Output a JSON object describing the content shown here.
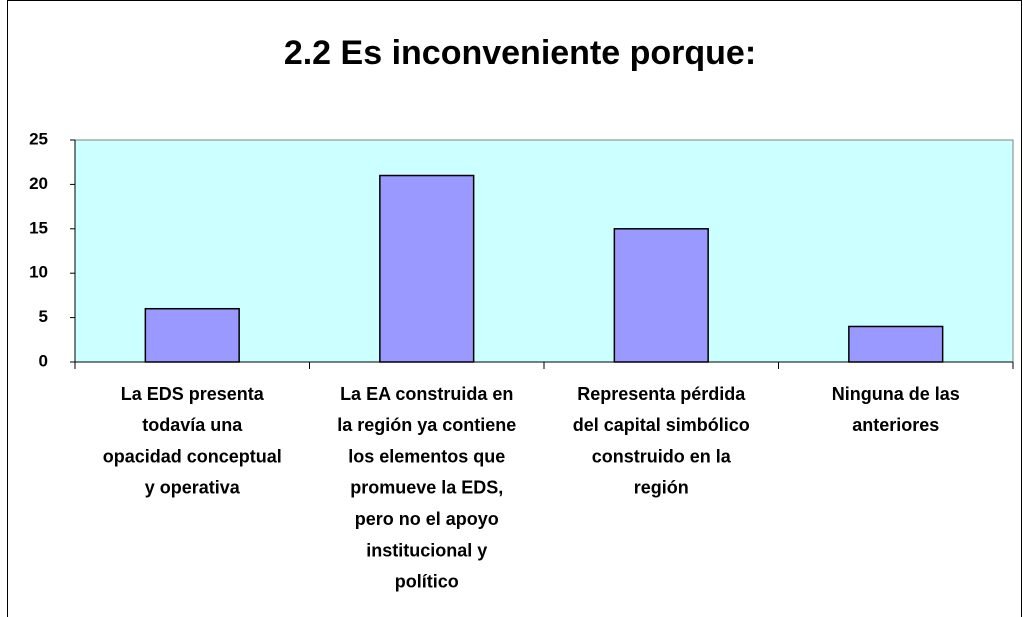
{
  "chart_data": {
    "type": "bar",
    "title": "2.2 Es inconveniente porque:",
    "categories": [
      [
        "La EDS presenta",
        "todavía una",
        "opacidad conceptual",
        "y operativa"
      ],
      [
        "La EA construida en",
        "la región ya contiene",
        "los elementos que",
        "promueve la EDS,",
        "pero no el apoyo",
        "institucional y",
        "político"
      ],
      [
        "Representa pérdida",
        "del capital simbólico",
        "construido en la",
        "región"
      ],
      [
        "Ninguna de las",
        "anteriores"
      ]
    ],
    "values": [
      6,
      21,
      15,
      4
    ],
    "color": "#9999ff",
    "plot_background": "#ccffff",
    "ylim": [
      0,
      25
    ],
    "yticks": [
      0,
      5,
      10,
      15,
      20,
      25
    ],
    "grid": false
  }
}
